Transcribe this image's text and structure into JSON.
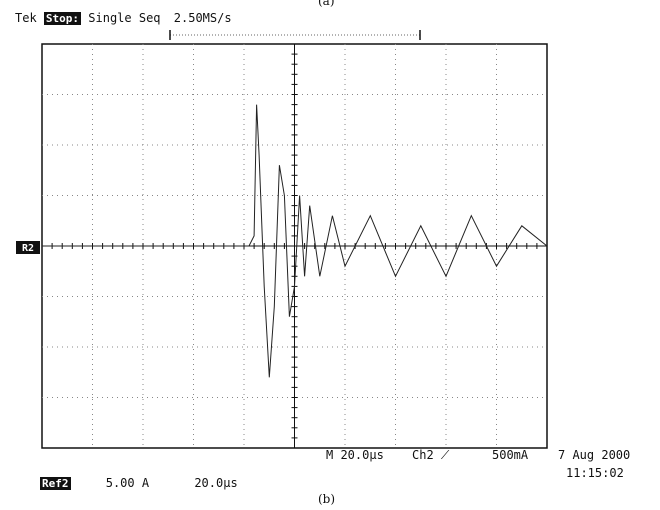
{
  "header": {
    "caption_top": "(a)",
    "brand": "Tek",
    "run_state": "Stop:",
    "acq_mode": "Single Seq",
    "sample_rate": "2.50MS/s"
  },
  "footer": {
    "timebase": "M 20.0µs",
    "trigger": "Ch2",
    "trigger_slope_icon": "rising-edge-icon",
    "trigger_level": "500mA",
    "date": "7 Aug 2000",
    "time": "11:15:02",
    "ref_label": "Ref2",
    "ref_scale": "5.00 A",
    "ref_time": "20.0µs",
    "caption_bottom": "(b)"
  },
  "chart_data": {
    "type": "line",
    "channel_marker": "R2",
    "x_divisions": 10,
    "y_divisions": 8,
    "x_unit": "µs",
    "y_unit": "A",
    "x_per_div": 20,
    "y_per_div": 5,
    "xlim": [
      0,
      200
    ],
    "ylim": [
      -20,
      20
    ],
    "grid": true,
    "series": [
      {
        "x": [
          0,
          40,
          80,
          82,
          84,
          85,
          86,
          88,
          90,
          92,
          94,
          96,
          98,
          100,
          102,
          104,
          106,
          110,
          115,
          120,
          130,
          140,
          150,
          160,
          170,
          180,
          190,
          200
        ],
        "values": [
          0,
          0,
          0,
          0,
          1,
          14,
          9,
          -4,
          -13,
          -6,
          8,
          5,
          -7,
          -4,
          5,
          -3,
          4,
          -3,
          3,
          -2,
          3,
          -3,
          2,
          -3,
          3,
          -2,
          2,
          0
        ]
      }
    ]
  }
}
